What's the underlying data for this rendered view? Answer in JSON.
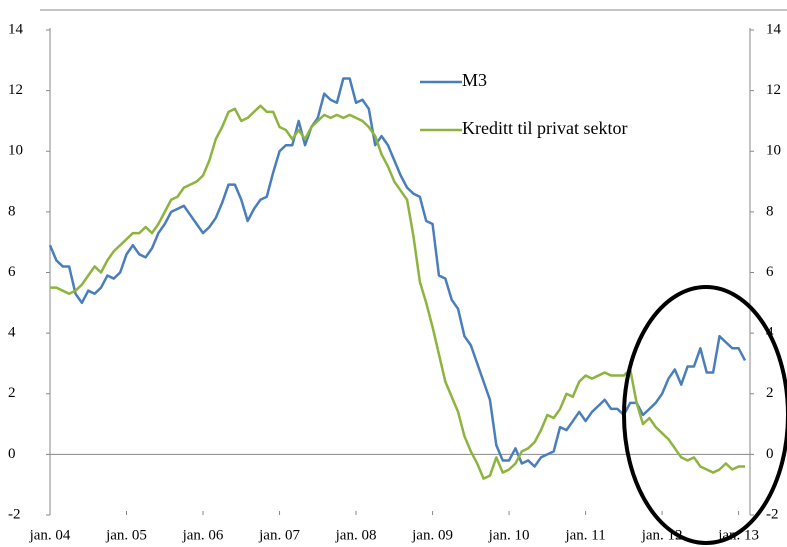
{
  "chart_data": {
    "type": "line",
    "categories": [
      "jan. 04",
      null,
      null,
      null,
      null,
      null,
      null,
      null,
      null,
      null,
      null,
      null,
      "jan. 05",
      null,
      null,
      null,
      null,
      null,
      null,
      null,
      null,
      null,
      null,
      null,
      "jan. 06",
      null,
      null,
      null,
      null,
      null,
      null,
      null,
      null,
      null,
      null,
      null,
      "jan. 07",
      null,
      null,
      null,
      null,
      null,
      null,
      null,
      null,
      null,
      null,
      null,
      "jan. 08",
      null,
      null,
      null,
      null,
      null,
      null,
      null,
      null,
      null,
      null,
      null,
      "jan. 09",
      null,
      null,
      null,
      null,
      null,
      null,
      null,
      null,
      null,
      null,
      null,
      "jan. 10",
      null,
      null,
      null,
      null,
      null,
      null,
      null,
      null,
      null,
      null,
      null,
      "jan. 11",
      null,
      null,
      null,
      null,
      null,
      null,
      null,
      null,
      null,
      null,
      null,
      "jan. 12",
      null,
      null,
      null,
      null,
      null,
      null,
      null,
      null,
      null,
      null,
      null,
      "jan. 13",
      null
    ],
    "series": [
      {
        "name": "M3",
        "color": "#4a7ebb",
        "values": [
          6.9,
          6.4,
          6.2,
          6.2,
          5.3,
          5.0,
          5.4,
          5.3,
          5.5,
          5.9,
          5.8,
          6.0,
          6.6,
          6.9,
          6.6,
          6.5,
          6.8,
          7.3,
          7.6,
          8.0,
          8.1,
          8.2,
          7.9,
          7.6,
          7.3,
          7.5,
          7.8,
          8.3,
          8.9,
          8.9,
          8.4,
          7.7,
          8.1,
          8.4,
          8.5,
          9.3,
          10.0,
          10.2,
          10.2,
          11.0,
          10.2,
          10.8,
          11.1,
          11.9,
          11.7,
          11.6,
          12.4,
          12.4,
          11.6,
          11.7,
          11.4,
          10.2,
          10.5,
          10.2,
          9.7,
          9.2,
          8.8,
          8.6,
          8.5,
          7.7,
          7.6,
          5.9,
          5.8,
          5.1,
          4.8,
          3.9,
          3.6,
          3.0,
          2.4,
          1.8,
          0.3,
          -0.2,
          -0.2,
          0.2,
          -0.3,
          -0.2,
          -0.4,
          -0.1,
          0.0,
          0.1,
          0.9,
          0.8,
          1.1,
          1.4,
          1.1,
          1.4,
          1.6,
          1.8,
          1.5,
          1.5,
          1.3,
          1.7,
          1.7,
          1.3,
          1.5,
          1.7,
          2.0,
          2.5,
          2.8,
          2.3,
          2.9,
          2.9,
          3.5,
          2.7,
          2.7,
          3.9,
          3.7,
          3.5,
          3.5,
          3.1
        ]
      },
      {
        "name": "Kreditt til privat sektor",
        "color": "#8db43e",
        "values": [
          5.5,
          5.5,
          5.4,
          5.3,
          5.4,
          5.6,
          5.9,
          6.2,
          6.0,
          6.4,
          6.7,
          6.9,
          7.1,
          7.3,
          7.3,
          7.5,
          7.3,
          7.6,
          8.0,
          8.4,
          8.5,
          8.8,
          8.9,
          9.0,
          9.2,
          9.7,
          10.4,
          10.8,
          11.3,
          11.4,
          11.0,
          11.1,
          11.3,
          11.5,
          11.3,
          11.3,
          10.8,
          10.7,
          10.4,
          10.7,
          10.4,
          10.8,
          11.0,
          11.2,
          11.1,
          11.2,
          11.1,
          11.2,
          11.1,
          11.0,
          10.8,
          10.5,
          9.9,
          9.5,
          9.0,
          8.7,
          8.4,
          7.2,
          5.7,
          5.0,
          4.2,
          3.3,
          2.4,
          1.9,
          1.4,
          0.6,
          0.1,
          -0.3,
          -0.8,
          -0.7,
          -0.1,
          -0.6,
          -0.5,
          -0.3,
          0.1,
          0.2,
          0.4,
          0.8,
          1.3,
          1.2,
          1.5,
          2.0,
          1.9,
          2.4,
          2.6,
          2.5,
          2.6,
          2.7,
          2.6,
          2.6,
          2.6,
          2.8,
          1.7,
          1.0,
          1.2,
          0.9,
          0.7,
          0.5,
          0.2,
          -0.1,
          -0.2,
          -0.1,
          -0.4,
          -0.5,
          -0.6,
          -0.5,
          -0.3,
          -0.5,
          -0.4,
          -0.4
        ]
      }
    ],
    "ylim": [
      -2,
      14
    ],
    "yticks": [
      -2,
      0,
      2,
      4,
      6,
      8,
      10,
      12,
      14
    ],
    "y2lim": [
      -2,
      14
    ],
    "y2ticks": [
      -2,
      0,
      2,
      4,
      6,
      8,
      10,
      12,
      14
    ],
    "grid": false,
    "legend": "upper right"
  }
}
